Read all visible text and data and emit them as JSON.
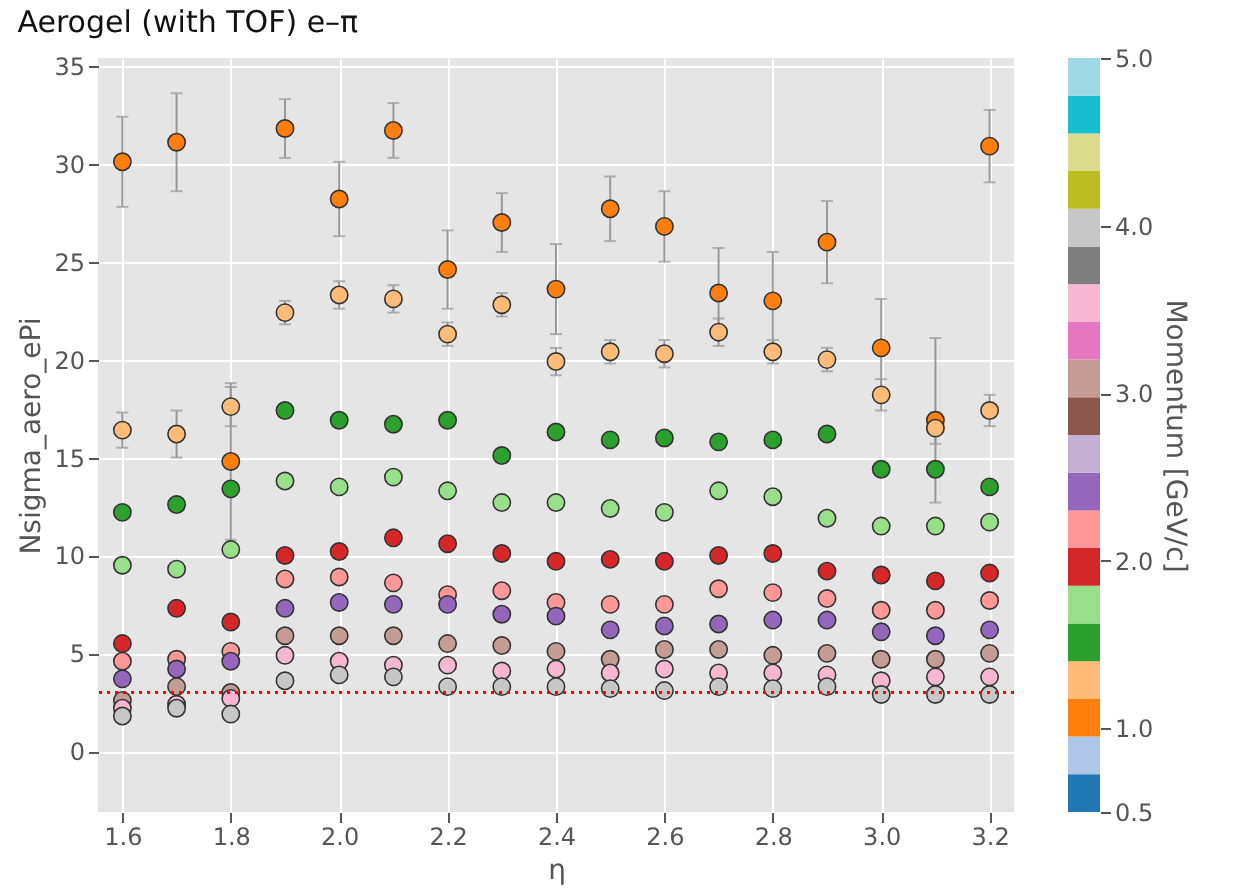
{
  "chart_data": {
    "type": "scatter",
    "title": "Aerogel (with TOF) e–π",
    "xlabel": "η",
    "ylabel": "Nsigma_aero_ePi",
    "clabel": "Momentum [GeV/c]",
    "x": [
      1.6,
      1.7,
      1.8,
      1.9,
      2.0,
      2.1,
      2.2,
      2.3,
      2.4,
      2.5,
      2.6,
      2.7,
      2.8,
      2.9,
      3.0,
      3.1,
      3.2
    ],
    "xlim": [
      1.555,
      3.245
    ],
    "xticks": [
      1.6,
      1.8,
      {
        "value": 2,
        "label": "2.0"
      },
      2.2,
      2.4,
      2.6,
      2.8,
      {
        "value": 3,
        "label": "3.0"
      },
      3.2
    ],
    "ylim": [
      -3.1,
      35.4
    ],
    "yticks": [
      0,
      5,
      10,
      15,
      20,
      25,
      30,
      35
    ],
    "clim": [
      0.5,
      5.0
    ],
    "cticks": [
      0.5,
      {
        "value": 1,
        "label": "1.0"
      },
      {
        "value": 2,
        "label": "2.0"
      },
      {
        "value": 3,
        "label": "3.0"
      },
      {
        "value": 4,
        "label": "4.0"
      },
      {
        "value": 5,
        "label": "5.0"
      }
    ],
    "grid": true,
    "marker": "circle",
    "ref_lines": [
      {
        "axis": "y",
        "value": 3,
        "color": "#ff0000",
        "line_style": "dotted"
      }
    ],
    "series": [
      {
        "values": [
          30.1,
          31.1,
          14.8,
          31.8,
          28.2,
          31.7,
          24.6,
          27.0,
          23.6,
          27.7,
          26.8,
          23.4,
          23.0,
          26.0,
          20.6,
          16.9,
          30.9
        ],
        "cvalues": [
          1.06,
          1.06,
          1.06,
          1.06,
          1.06,
          1.06,
          1.06,
          1.06,
          1.06,
          1.06,
          1.06,
          1.06,
          1.06,
          1.06,
          1.06,
          1.06,
          1.06
        ],
        "errors": [
          2.3,
          2.5,
          4.0,
          1.5,
          1.9,
          1.4,
          2.0,
          1.5,
          2.3,
          1.65,
          1.8,
          2.3,
          2.5,
          2.1,
          2.5,
          4.2,
          1.85
        ]
      },
      {
        "values": [
          16.4,
          16.2,
          17.6,
          22.4,
          23.3,
          23.1,
          21.3,
          22.8,
          19.9,
          20.4,
          20.3,
          21.4,
          20.4,
          20.0,
          18.2,
          16.5,
          17.4
        ],
        "cvalues": [
          1.29,
          1.29,
          1.29,
          1.29,
          1.29,
          1.29,
          1.29,
          1.29,
          1.29,
          1.29,
          1.29,
          1.29,
          1.29,
          1.29,
          1.29,
          1.29,
          1.29
        ],
        "errors": [
          0.9,
          1.2,
          1.0,
          0.6,
          0.7,
          0.7,
          0.6,
          0.6,
          0.7,
          0.6,
          0.7,
          0.7,
          0.6,
          0.6,
          0.8,
          0.8,
          0.8
        ]
      },
      {
        "values": [
          12.2,
          12.6,
          13.4,
          17.4,
          16.9,
          16.7,
          16.9,
          15.1,
          16.3,
          15.9,
          16.0,
          15.8,
          15.9,
          16.2,
          14.4,
          14.4,
          13.5
        ],
        "cvalues": [
          1.51,
          1.51,
          1.51,
          1.51,
          1.51,
          1.51,
          1.51,
          1.51,
          1.51,
          1.51,
          1.51,
          1.51,
          1.51,
          1.51,
          1.51,
          1.51,
          1.51
        ]
      },
      {
        "values": [
          9.5,
          9.3,
          10.3,
          13.8,
          13.5,
          14.0,
          13.3,
          12.7,
          12.7,
          12.4,
          12.2,
          13.3,
          13.0,
          11.9,
          11.5,
          11.5,
          11.7
        ],
        "cvalues": [
          1.74,
          1.74,
          1.74,
          1.74,
          1.74,
          1.74,
          1.74,
          1.74,
          1.74,
          1.74,
          1.74,
          1.74,
          1.74,
          1.74,
          1.74,
          1.74,
          1.74
        ]
      },
      {
        "values": [
          5.5,
          7.3,
          6.6,
          10.0,
          10.2,
          10.9,
          10.6,
          10.1,
          9.7,
          9.8,
          9.7,
          10.0,
          10.1,
          9.2,
          9.0,
          8.7,
          9.1
        ],
        "cvalues": [
          1.96,
          1.96,
          1.96,
          1.96,
          1.96,
          1.96,
          1.96,
          1.96,
          1.96,
          1.96,
          1.96,
          1.96,
          1.96,
          1.96,
          1.96,
          1.96,
          1.96
        ]
      },
      {
        "values": [
          4.6,
          4.7,
          5.1,
          8.8,
          8.9,
          8.6,
          8.0,
          8.2,
          7.6,
          7.5,
          7.5,
          8.3,
          8.1,
          7.8,
          7.2,
          7.2,
          7.7
        ],
        "cvalues": [
          2.19,
          2.19,
          2.19,
          2.19,
          2.19,
          2.19,
          2.19,
          2.19,
          2.19,
          2.19,
          2.19,
          2.19,
          2.19,
          2.19,
          2.19,
          2.19,
          2.19
        ]
      },
      {
        "values": [
          3.7,
          4.2,
          4.6,
          7.3,
          7.6,
          7.5,
          7.5,
          7.0,
          6.9,
          6.2,
          6.4,
          6.5,
          6.7,
          6.7,
          6.1,
          5.9,
          6.2
        ],
        "cvalues": [
          2.41,
          2.41,
          2.41,
          2.41,
          2.41,
          2.41,
          2.41,
          2.41,
          2.41,
          2.41,
          2.41,
          2.41,
          2.41,
          2.41,
          2.41,
          2.41,
          2.41
        ]
      },
      {
        "values": [
          2.6,
          3.3,
          3.0,
          5.9,
          5.9,
          5.9,
          5.5,
          5.4,
          5.1,
          4.7,
          5.2,
          5.2,
          4.9,
          5.0,
          4.7,
          4.7,
          5.0
        ],
        "cvalues": [
          3.09,
          3.09,
          3.09,
          3.09,
          3.09,
          3.09,
          3.09,
          3.09,
          3.09,
          3.09,
          3.09,
          3.09,
          3.09,
          3.09,
          3.09,
          3.09,
          3.09
        ]
      },
      {
        "values": [
          2.2,
          2.4,
          2.7,
          4.9,
          4.6,
          4.4,
          4.4,
          4.1,
          4.2,
          4.0,
          4.2,
          4.0,
          4.0,
          3.9,
          3.6,
          3.8,
          3.8
        ],
        "cvalues": [
          3.54,
          3.54,
          3.54,
          3.54,
          3.54,
          3.54,
          3.54,
          3.54,
          3.54,
          3.54,
          3.54,
          3.54,
          3.54,
          3.54,
          3.54,
          3.54,
          3.54
        ]
      },
      {
        "values": [
          1.8,
          2.2,
          1.9,
          3.6,
          3.9,
          3.8,
          3.3,
          3.3,
          3.3,
          3.2,
          3.1,
          3.3,
          3.2,
          3.3,
          2.9,
          2.9,
          2.9
        ],
        "cvalues": [
          3.99,
          3.99,
          3.99,
          3.99,
          3.99,
          3.99,
          3.99,
          3.99,
          3.99,
          3.99,
          3.99,
          3.99,
          3.99,
          3.99,
          3.99,
          3.99,
          3.99
        ]
      }
    ]
  }
}
